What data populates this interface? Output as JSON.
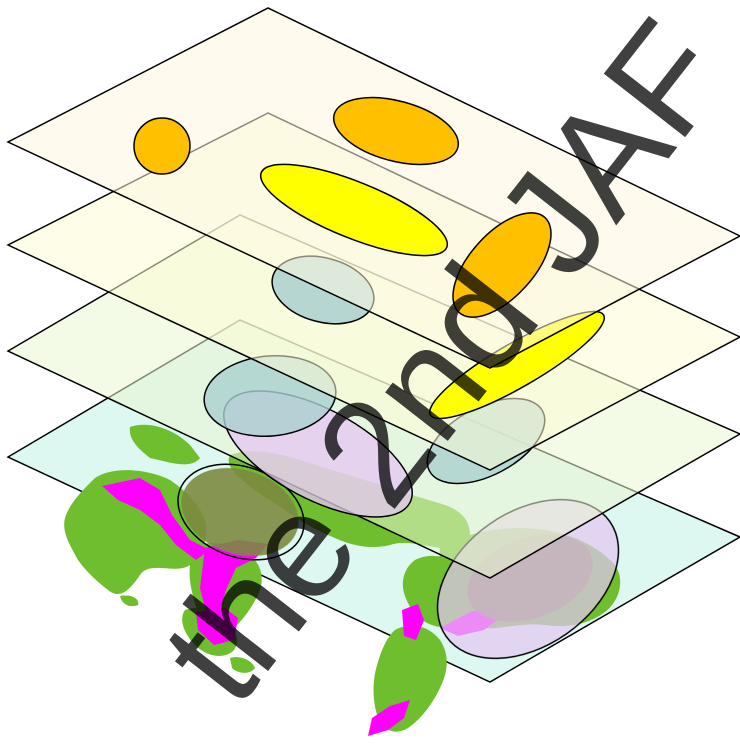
{
  "watermark": {
    "text": "the 2nd JAF"
  },
  "colors": {
    "layer_top": "#FDF7E0",
    "layer_2": "#FDFBD6",
    "layer_3": "#EAF6D2",
    "layer_bottom": "#DDF7F1",
    "orange_blob": "#FFC000",
    "yellow_blob": "#FFFF00",
    "teal_blob": "#A9CFD0",
    "lavender_blob": "#E4C6F2",
    "land": "#6FBE2E",
    "land_dark": "#7C8A40",
    "magenta_region": "#FF00FF",
    "outline": "#000000"
  }
}
